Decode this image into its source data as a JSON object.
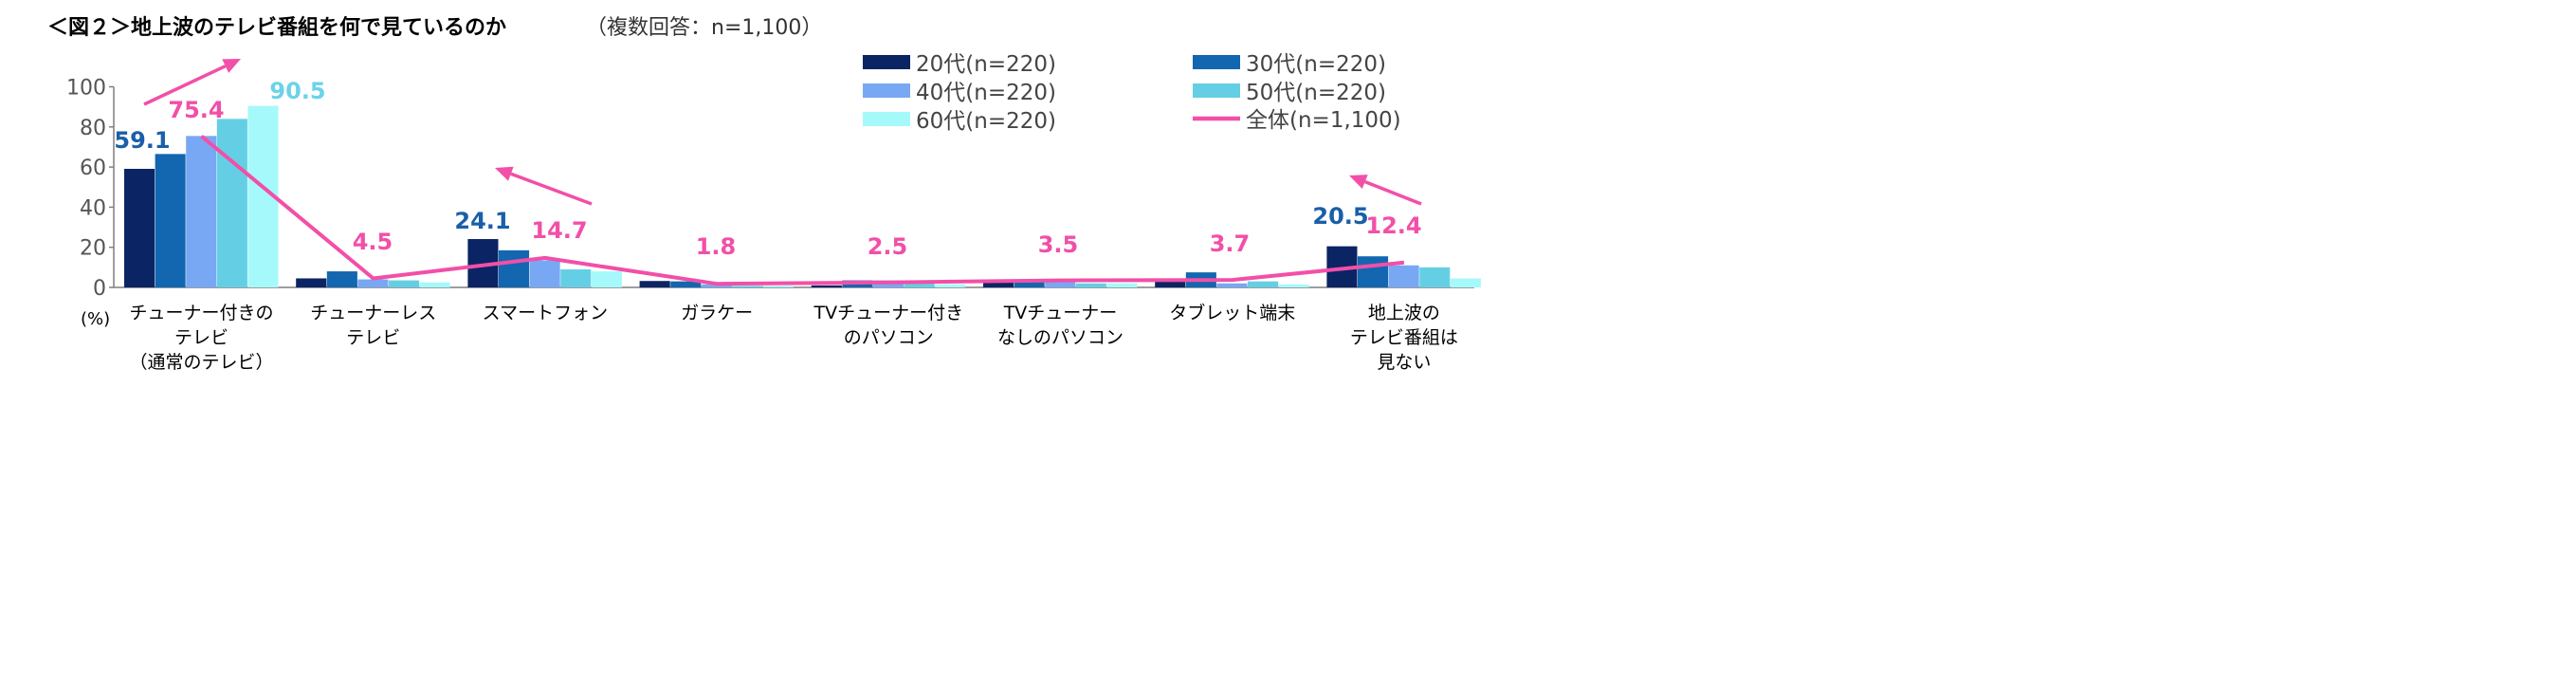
{
  "title": "＜図２＞地上波のテレビ番組を何で見ているのか",
  "subtitle": "（複数回答：n=1,100）",
  "chart_data": {
    "type": "bar",
    "unit_label": "(%)",
    "ylim": [
      0,
      100
    ],
    "yticks": [
      "0",
      "20",
      "40",
      "60",
      "80",
      "100"
    ],
    "categories": [
      [
        "チューナー付きの",
        "テレビ",
        "（通常のテレビ）"
      ],
      [
        "チューナーレス",
        "テレビ"
      ],
      [
        "スマートフォン"
      ],
      [
        "ガラケー"
      ],
      [
        "TVチューナー付き",
        "のパソコン"
      ],
      [
        "TVチューナー",
        "なしのパソコン"
      ],
      [
        "タブレット端末"
      ],
      [
        "地上波の",
        "テレビ番組は",
        "見ない"
      ]
    ],
    "series": [
      {
        "name": "20代(n=220)",
        "color": "#0b2464",
        "values": [
          59.1,
          4.5,
          24.1,
          3.2,
          1.0,
          2.5,
          3.0,
          20.5
        ]
      },
      {
        "name": "30代(n=220)",
        "color": "#1366b0",
        "values": [
          66.5,
          8.0,
          18.5,
          3.0,
          3.5,
          3.5,
          7.5,
          15.5
        ]
      },
      {
        "name": "40代(n=220)",
        "color": "#78a8f3",
        "values": [
          75.5,
          4.0,
          13.5,
          1.5,
          3.5,
          3.5,
          2.0,
          11.0
        ]
      },
      {
        "name": "50代(n=220)",
        "color": "#64cfe4",
        "values": [
          84.0,
          3.5,
          9.0,
          0.8,
          2.0,
          2.0,
          3.0,
          10.0
        ]
      },
      {
        "name": "60代(n=220)",
        "color": "#a6f9fb",
        "values": [
          90.5,
          2.5,
          8.0,
          0.8,
          1.5,
          2.0,
          1.5,
          4.5
        ]
      }
    ],
    "total": {
      "name": "全体(n=1,100)",
      "color": "#f24fa8",
      "values": [
        75.4,
        4.5,
        14.7,
        1.8,
        2.5,
        3.5,
        3.7,
        12.4
      ]
    },
    "data_labels": [
      {
        "text": "59.1",
        "color": "#1a5fa8"
      },
      {
        "text": "75.4",
        "color": "#f24fa8"
      },
      {
        "text": "90.5",
        "color": "#6ad3e8"
      },
      {
        "text": "4.5",
        "color": "#f24fa8"
      },
      {
        "text": "24.1",
        "color": "#1a5fa8"
      },
      {
        "text": "14.7",
        "color": "#f24fa8"
      },
      {
        "text": "1.8",
        "color": "#f24fa8"
      },
      {
        "text": "2.5",
        "color": "#f24fa8"
      },
      {
        "text": "3.5",
        "color": "#f24fa8"
      },
      {
        "text": "3.7",
        "color": "#f24fa8"
      },
      {
        "text": "20.5",
        "color": "#1a5fa8"
      },
      {
        "text": "12.4",
        "color": "#f24fa8"
      }
    ],
    "annotations": [
      {
        "name": "trend-arrow-up-right"
      },
      {
        "name": "trend-arrow-up-left"
      },
      {
        "name": "trend-arrow-up-left"
      }
    ],
    "legend_placement": "top-right",
    "grid": false
  }
}
